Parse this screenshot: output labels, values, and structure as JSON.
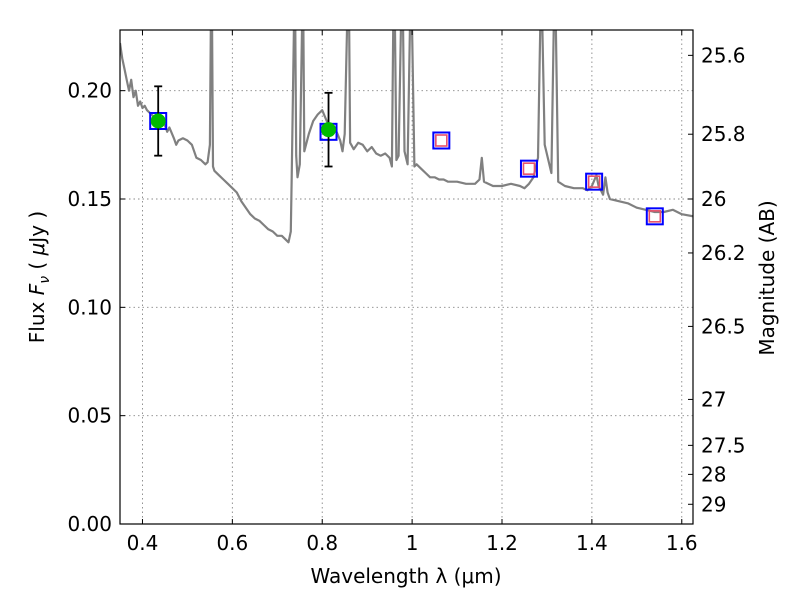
{
  "chart_data": {
    "type": "line",
    "xlabel": "Wavelength  λ (μm)",
    "ylabel_left_parts": [
      "Flux ",
      "F",
      "ν",
      " ( ",
      "μ",
      "Jy )"
    ],
    "ylabel_right": "Magnitude (AB)",
    "xlim": [
      0.35,
      1.625
    ],
    "ylim": [
      0.0,
      0.228
    ],
    "xticks": [
      0.4,
      0.6,
      0.8,
      1.0,
      1.2,
      1.4,
      1.6
    ],
    "xtick_labels": [
      "0.4",
      "0.6",
      "0.8",
      "1",
      "1.2",
      "1.4",
      "1.6"
    ],
    "yticks": [
      0.0,
      0.05,
      0.1,
      0.15,
      0.2
    ],
    "ytick_labels": [
      "0.00",
      "0.05",
      "0.10",
      "0.15",
      "0.20"
    ],
    "right_ticks": [
      {
        "flux": 0.2163,
        "label": "25.6"
      },
      {
        "flux": 0.1799,
        "label": "25.8"
      },
      {
        "flux": 0.15,
        "label": "26"
      },
      {
        "flux": 0.1251,
        "label": "26.2"
      },
      {
        "flux": 0.0912,
        "label": "26.5"
      },
      {
        "flux": 0.0575,
        "label": "27"
      },
      {
        "flux": 0.0363,
        "label": "27.5"
      },
      {
        "flux": 0.0229,
        "label": "28"
      },
      {
        "flux": 0.0091,
        "label": "29"
      }
    ],
    "grid": true,
    "series": [
      {
        "kind": "model-spectrum",
        "color": "#808080",
        "points": [
          [
            0.35,
            0.222
          ],
          [
            0.355,
            0.215
          ],
          [
            0.36,
            0.21
          ],
          [
            0.365,
            0.205
          ],
          [
            0.37,
            0.2
          ],
          [
            0.375,
            0.205
          ],
          [
            0.38,
            0.197
          ],
          [
            0.385,
            0.2
          ],
          [
            0.39,
            0.193
          ],
          [
            0.395,
            0.195
          ],
          [
            0.4,
            0.192
          ],
          [
            0.405,
            0.193
          ],
          [
            0.41,
            0.191
          ],
          [
            0.42,
            0.189
          ],
          [
            0.43,
            0.187
          ],
          [
            0.44,
            0.186
          ],
          [
            0.45,
            0.184
          ],
          [
            0.455,
            0.181
          ],
          [
            0.46,
            0.183
          ],
          [
            0.47,
            0.178
          ],
          [
            0.475,
            0.175
          ],
          [
            0.48,
            0.177
          ],
          [
            0.49,
            0.178
          ],
          [
            0.5,
            0.177
          ],
          [
            0.51,
            0.175
          ],
          [
            0.52,
            0.169
          ],
          [
            0.53,
            0.168
          ],
          [
            0.54,
            0.166
          ],
          [
            0.545,
            0.167
          ],
          [
            0.55,
            0.175
          ],
          [
            0.552,
            0.228
          ],
          [
            0.555,
            0.228
          ],
          [
            0.557,
            0.165
          ],
          [
            0.56,
            0.163
          ],
          [
            0.57,
            0.161
          ],
          [
            0.58,
            0.159
          ],
          [
            0.59,
            0.157
          ],
          [
            0.6,
            0.155
          ],
          [
            0.61,
            0.153
          ],
          [
            0.62,
            0.149
          ],
          [
            0.63,
            0.146
          ],
          [
            0.64,
            0.143
          ],
          [
            0.65,
            0.141
          ],
          [
            0.66,
            0.14
          ],
          [
            0.67,
            0.138
          ],
          [
            0.68,
            0.136
          ],
          [
            0.69,
            0.135
          ],
          [
            0.7,
            0.133
          ],
          [
            0.71,
            0.133
          ],
          [
            0.72,
            0.131
          ],
          [
            0.725,
            0.13
          ],
          [
            0.73,
            0.135
          ],
          [
            0.732,
            0.16
          ],
          [
            0.735,
            0.2
          ],
          [
            0.737,
            0.228
          ],
          [
            0.74,
            0.228
          ],
          [
            0.742,
            0.17
          ],
          [
            0.745,
            0.16
          ],
          [
            0.75,
            0.166
          ],
          [
            0.755,
            0.228
          ],
          [
            0.758,
            0.228
          ],
          [
            0.76,
            0.172
          ],
          [
            0.77,
            0.18
          ],
          [
            0.78,
            0.186
          ],
          [
            0.79,
            0.189
          ],
          [
            0.8,
            0.191
          ],
          [
            0.81,
            0.186
          ],
          [
            0.82,
            0.183
          ],
          [
            0.83,
            0.182
          ],
          [
            0.84,
            0.177
          ],
          [
            0.845,
            0.172
          ],
          [
            0.85,
            0.18
          ],
          [
            0.855,
            0.228
          ],
          [
            0.86,
            0.228
          ],
          [
            0.862,
            0.176
          ],
          [
            0.87,
            0.173
          ],
          [
            0.88,
            0.176
          ],
          [
            0.89,
            0.175
          ],
          [
            0.9,
            0.172
          ],
          [
            0.91,
            0.174
          ],
          [
            0.92,
            0.171
          ],
          [
            0.93,
            0.17
          ],
          [
            0.94,
            0.171
          ],
          [
            0.95,
            0.169
          ],
          [
            0.955,
            0.165
          ],
          [
            0.958,
            0.228
          ],
          [
            0.962,
            0.228
          ],
          [
            0.965,
            0.168
          ],
          [
            0.97,
            0.17
          ],
          [
            0.975,
            0.228
          ],
          [
            0.98,
            0.228
          ],
          [
            0.983,
            0.172
          ],
          [
            0.99,
            0.166
          ],
          [
            0.995,
            0.228
          ],
          [
            1.0,
            0.228
          ],
          [
            1.005,
            0.165
          ],
          [
            1.01,
            0.166
          ],
          [
            1.02,
            0.164
          ],
          [
            1.03,
            0.162
          ],
          [
            1.04,
            0.16
          ],
          [
            1.05,
            0.16
          ],
          [
            1.06,
            0.159
          ],
          [
            1.07,
            0.159
          ],
          [
            1.08,
            0.158
          ],
          [
            1.1,
            0.158
          ],
          [
            1.12,
            0.157
          ],
          [
            1.14,
            0.157
          ],
          [
            1.15,
            0.159
          ],
          [
            1.155,
            0.169
          ],
          [
            1.16,
            0.158
          ],
          [
            1.18,
            0.156
          ],
          [
            1.2,
            0.156
          ],
          [
            1.22,
            0.157
          ],
          [
            1.24,
            0.156
          ],
          [
            1.25,
            0.155
          ],
          [
            1.26,
            0.157
          ],
          [
            1.27,
            0.16
          ],
          [
            1.28,
            0.169
          ],
          [
            1.285,
            0.228
          ],
          [
            1.29,
            0.228
          ],
          [
            1.295,
            0.175
          ],
          [
            1.31,
            0.162
          ],
          [
            1.315,
            0.228
          ],
          [
            1.32,
            0.228
          ],
          [
            1.325,
            0.158
          ],
          [
            1.34,
            0.156
          ],
          [
            1.36,
            0.155
          ],
          [
            1.38,
            0.155
          ],
          [
            1.39,
            0.154
          ],
          [
            1.4,
            0.156
          ],
          [
            1.41,
            0.161
          ],
          [
            1.415,
            0.156
          ],
          [
            1.42,
            0.154
          ],
          [
            1.425,
            0.152
          ],
          [
            1.43,
            0.16
          ],
          [
            1.435,
            0.153
          ],
          [
            1.44,
            0.15
          ],
          [
            1.46,
            0.149
          ],
          [
            1.48,
            0.148
          ],
          [
            1.5,
            0.146
          ],
          [
            1.52,
            0.145
          ],
          [
            1.54,
            0.144
          ],
          [
            1.56,
            0.144
          ],
          [
            1.58,
            0.145
          ],
          [
            1.6,
            0.143
          ],
          [
            1.625,
            0.142
          ]
        ]
      },
      {
        "kind": "observed",
        "color": "#00bb00",
        "points": [
          {
            "x": 0.435,
            "y": 0.186,
            "yerr": 0.016
          },
          {
            "x": 0.814,
            "y": 0.182,
            "yerr": 0.017
          }
        ]
      },
      {
        "kind": "model-photometry",
        "color": "#0000ff",
        "points": [
          [
            0.435,
            0.186
          ],
          [
            0.814,
            0.181
          ],
          [
            1.065,
            0.177
          ],
          [
            1.26,
            0.164
          ],
          [
            1.405,
            0.158
          ],
          [
            1.54,
            0.142
          ]
        ]
      },
      {
        "kind": "synthetic-photometry",
        "color": "#e8506a",
        "points": [
          [
            1.065,
            0.177
          ],
          [
            1.26,
            0.164
          ],
          [
            1.405,
            0.158
          ],
          [
            1.54,
            0.142
          ]
        ]
      }
    ]
  }
}
